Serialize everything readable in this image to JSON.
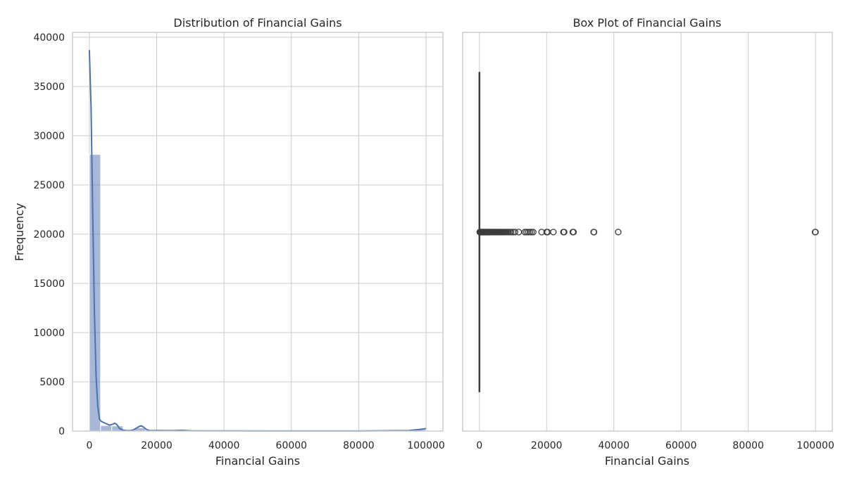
{
  "chart_data": [
    {
      "type": "histogram",
      "title": "Distribution of Financial Gains",
      "xlabel": "Financial Gains",
      "ylabel": "Frequency",
      "xlim": [
        -5000,
        105000
      ],
      "ylim": [
        0,
        40500
      ],
      "xticks": [
        0,
        20000,
        40000,
        60000,
        80000,
        100000
      ],
      "yticks": [
        0,
        5000,
        10000,
        15000,
        20000,
        25000,
        30000,
        35000,
        40000
      ],
      "grid": true,
      "bar_color": "#4c72b0",
      "bar_opacity": 0.5,
      "bins": [
        {
          "x0": 0,
          "x1": 3333,
          "count": 28100
        },
        {
          "x0": 3333,
          "x1": 6667,
          "count": 560
        },
        {
          "x0": 6667,
          "x1": 10000,
          "count": 520
        },
        {
          "x0": 10000,
          "x1": 13333,
          "count": 80
        },
        {
          "x0": 13333,
          "x1": 16667,
          "count": 330
        },
        {
          "x0": 16667,
          "x1": 20000,
          "count": 20
        },
        {
          "x0": 20000,
          "x1": 23333,
          "count": 40
        },
        {
          "x0": 23333,
          "x1": 26667,
          "count": 20
        },
        {
          "x0": 26667,
          "x1": 30000,
          "count": 70
        },
        {
          "x0": 30000,
          "x1": 33333,
          "count": 5
        },
        {
          "x0": 33333,
          "x1": 36667,
          "count": 10
        },
        {
          "x0": 36667,
          "x1": 40000,
          "count": 3
        },
        {
          "x0": 40000,
          "x1": 43333,
          "count": 3
        },
        {
          "x0": 96667,
          "x1": 100000,
          "count": 160
        }
      ],
      "kde": {
        "color": "#4c72b0",
        "x": [
          0,
          500,
          1000,
          1500,
          2000,
          2500,
          3000,
          3500,
          4000,
          5000,
          6000,
          7000,
          7500,
          8000,
          8500,
          9000,
          10000,
          11000,
          12000,
          13000,
          14000,
          15000,
          15500,
          16000,
          17000,
          18000,
          20000,
          25000,
          27500,
          30000,
          40000,
          60000,
          80000,
          95000,
          98000,
          100000
        ],
        "y": [
          38700,
          33000,
          22000,
          12000,
          5500,
          2500,
          1200,
          1000,
          900,
          750,
          600,
          700,
          800,
          700,
          500,
          250,
          90,
          60,
          40,
          100,
          300,
          500,
          520,
          420,
          150,
          40,
          60,
          40,
          80,
          30,
          15,
          5,
          5,
          60,
          160,
          250
        ]
      }
    },
    {
      "type": "box",
      "title": "Box Plot of Financial Gains",
      "xlabel": "Financial Gains",
      "ylabel": "",
      "xlim": [
        -5000,
        105000
      ],
      "xticks": [
        0,
        20000,
        40000,
        60000,
        80000,
        100000
      ],
      "grid": true,
      "orientation": "horizontal",
      "box_color": "#4c72b0",
      "median": 0,
      "q1": 0,
      "q3": 0,
      "whisker_low": 0,
      "whisker_high": 0,
      "outliers": [
        100,
        200,
        300,
        400,
        500,
        600,
        700,
        800,
        900,
        1000,
        1100,
        1200,
        1300,
        1400,
        1500,
        1600,
        1700,
        1800,
        1900,
        2000,
        2100,
        2200,
        2300,
        2400,
        2500,
        2600,
        2700,
        2800,
        2900,
        3000,
        3200,
        3400,
        3600,
        3800,
        4000,
        4200,
        4400,
        4600,
        4800,
        5000,
        5200,
        5400,
        5600,
        5800,
        6000,
        6200,
        6500,
        6800,
        7000,
        7300,
        7600,
        7900,
        8200,
        8600,
        9000,
        9400,
        10000,
        10600,
        11700,
        13500,
        14000,
        14500,
        15000,
        15500,
        16000,
        18500,
        20000,
        20300,
        22000,
        25000,
        25200,
        27800,
        28000,
        34000,
        34100,
        41300,
        99900,
        100000
      ]
    }
  ]
}
